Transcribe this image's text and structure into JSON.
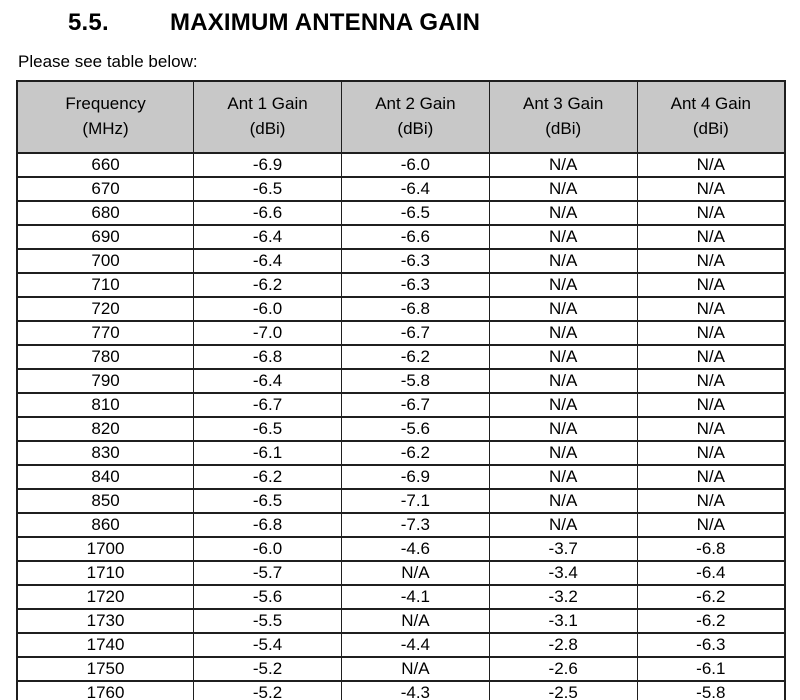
{
  "page": {
    "section_number": "5.5.",
    "section_title": "MAXIMUM ANTENNA GAIN",
    "intro": "Please see table below:"
  },
  "colors": {
    "header_bg": "#c8c8c8",
    "border": "#1f1f1f",
    "text": "#000000",
    "page_bg": "#ffffff"
  },
  "table": {
    "headers": [
      {
        "line1": "Frequency",
        "line2": "(MHz)"
      },
      {
        "line1": "Ant 1 Gain",
        "line2": "(dBi)"
      },
      {
        "line1": "Ant 2 Gain",
        "line2": "(dBi)"
      },
      {
        "line1": "Ant 3 Gain",
        "line2": "(dBi)"
      },
      {
        "line1": "Ant 4 Gain",
        "line2": "(dBi)"
      }
    ],
    "rows": [
      [
        "660",
        "-6.9",
        "-6.0",
        "N/A",
        "N/A"
      ],
      [
        "670",
        "-6.5",
        "-6.4",
        "N/A",
        "N/A"
      ],
      [
        "680",
        "-6.6",
        "-6.5",
        "N/A",
        "N/A"
      ],
      [
        "690",
        "-6.4",
        "-6.6",
        "N/A",
        "N/A"
      ],
      [
        "700",
        "-6.4",
        "-6.3",
        "N/A",
        "N/A"
      ],
      [
        "710",
        "-6.2",
        "-6.3",
        "N/A",
        "N/A"
      ],
      [
        "720",
        "-6.0",
        "-6.8",
        "N/A",
        "N/A"
      ],
      [
        "770",
        "-7.0",
        "-6.7",
        "N/A",
        "N/A"
      ],
      [
        "780",
        "-6.8",
        "-6.2",
        "N/A",
        "N/A"
      ],
      [
        "790",
        "-6.4",
        "-5.8",
        "N/A",
        "N/A"
      ],
      [
        "810",
        "-6.7",
        "-6.7",
        "N/A",
        "N/A"
      ],
      [
        "820",
        "-6.5",
        "-5.6",
        "N/A",
        "N/A"
      ],
      [
        "830",
        "-6.1",
        "-6.2",
        "N/A",
        "N/A"
      ],
      [
        "840",
        "-6.2",
        "-6.9",
        "N/A",
        "N/A"
      ],
      [
        "850",
        "-6.5",
        "-7.1",
        "N/A",
        "N/A"
      ],
      [
        "860",
        "-6.8",
        "-7.3",
        "N/A",
        "N/A"
      ],
      [
        "1700",
        "-6.0",
        "-4.6",
        "-3.7",
        "-6.8"
      ],
      [
        "1710",
        "-5.7",
        "N/A",
        "-3.4",
        "-6.4"
      ],
      [
        "1720",
        "-5.6",
        "-4.1",
        "-3.2",
        "-6.2"
      ],
      [
        "1730",
        "-5.5",
        "N/A",
        "-3.1",
        "-6.2"
      ],
      [
        "1740",
        "-5.4",
        "-4.4",
        "-2.8",
        "-6.3"
      ],
      [
        "1750",
        "-5.2",
        "N/A",
        "-2.6",
        "-6.1"
      ],
      [
        "1760",
        "-5.2",
        "-4.3",
        "-2.5",
        "-5.8"
      ]
    ]
  }
}
